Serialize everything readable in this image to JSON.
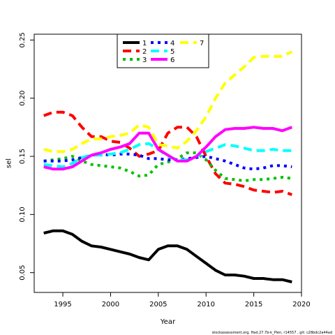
{
  "chart_data": {
    "type": "line",
    "xlabel": "Year",
    "ylabel": "sel",
    "xlim": [
      1992,
      2020
    ],
    "ylim": [
      0.033,
      0.255
    ],
    "x_ticks": [
      1995,
      2000,
      2005,
      2010,
      2015,
      2020
    ],
    "y_ticks": [
      0.05,
      0.1,
      0.15,
      0.2,
      0.25
    ],
    "x_tick_labels": [
      "1995",
      "2000",
      "2005",
      "2010",
      "2015",
      "2020"
    ],
    "y_tick_labels": [
      "0.05",
      "0.10",
      "0.15",
      "0.20",
      "0.25"
    ],
    "grid": false,
    "legend_position": "top-center",
    "footer": "stockassessment.org, Had.27.7b-k_Plen, r14557 , git: c28bdc2a44ad",
    "x": [
      1993,
      1994,
      1995,
      1996,
      1997,
      1998,
      1999,
      2000,
      2001,
      2002,
      2003,
      2004,
      2005,
      2006,
      2007,
      2008,
      2009,
      2010,
      2011,
      2012,
      2013,
      2014,
      2015,
      2016,
      2017,
      2018,
      2019
    ],
    "series": [
      {
        "name": "1",
        "color": "#000000",
        "dash": "solid",
        "values": [
          0.084,
          0.086,
          0.086,
          0.083,
          0.077,
          0.073,
          0.072,
          0.07,
          0.068,
          0.066,
          0.063,
          0.061,
          0.07,
          0.073,
          0.073,
          0.07,
          0.064,
          0.058,
          0.052,
          0.048,
          0.048,
          0.047,
          0.045,
          0.045,
          0.044,
          0.044,
          0.042
        ]
      },
      {
        "name": "2",
        "color": "#ff0000",
        "dash": "longdash",
        "values": [
          0.185,
          0.188,
          0.188,
          0.185,
          0.175,
          0.167,
          0.167,
          0.163,
          0.162,
          0.157,
          0.15,
          0.152,
          0.155,
          0.17,
          0.175,
          0.175,
          0.167,
          0.15,
          0.135,
          0.127,
          0.126,
          0.124,
          0.121,
          0.12,
          0.119,
          0.12,
          0.117
        ]
      },
      {
        "name": "3",
        "color": "#00c000",
        "dash": "dotted",
        "values": [
          0.146,
          0.147,
          0.148,
          0.15,
          0.146,
          0.143,
          0.142,
          0.141,
          0.14,
          0.137,
          0.133,
          0.134,
          0.143,
          0.145,
          0.148,
          0.153,
          0.153,
          0.147,
          0.138,
          0.131,
          0.13,
          0.129,
          0.13,
          0.13,
          0.131,
          0.132,
          0.131
        ]
      },
      {
        "name": "4",
        "color": "#0000ff",
        "dash": "dotted",
        "values": [
          0.146,
          0.146,
          0.146,
          0.147,
          0.149,
          0.151,
          0.152,
          0.151,
          0.152,
          0.152,
          0.151,
          0.148,
          0.148,
          0.147,
          0.147,
          0.148,
          0.149,
          0.15,
          0.148,
          0.146,
          0.143,
          0.14,
          0.139,
          0.14,
          0.142,
          0.142,
          0.141
        ]
      },
      {
        "name": "5",
        "color": "#00ffff",
        "dash": "longdash",
        "values": [
          0.143,
          0.142,
          0.141,
          0.144,
          0.149,
          0.151,
          0.151,
          0.152,
          0.153,
          0.156,
          0.16,
          0.161,
          0.156,
          0.15,
          0.147,
          0.147,
          0.15,
          0.154,
          0.157,
          0.16,
          0.159,
          0.157,
          0.155,
          0.155,
          0.156,
          0.155,
          0.155
        ]
      },
      {
        "name": "6",
        "color": "#ff00ff",
        "dash": "solid",
        "values": [
          0.141,
          0.139,
          0.139,
          0.141,
          0.146,
          0.151,
          0.153,
          0.156,
          0.158,
          0.161,
          0.17,
          0.17,
          0.156,
          0.151,
          0.146,
          0.146,
          0.15,
          0.158,
          0.167,
          0.173,
          0.174,
          0.174,
          0.175,
          0.174,
          0.174,
          0.172,
          0.175
        ]
      },
      {
        "name": "7",
        "color": "#ffff00",
        "dash": "longdash",
        "values": [
          0.156,
          0.154,
          0.154,
          0.156,
          0.161,
          0.165,
          0.165,
          0.167,
          0.168,
          0.17,
          0.177,
          0.175,
          0.16,
          0.159,
          0.157,
          0.163,
          0.172,
          0.184,
          0.2,
          0.213,
          0.22,
          0.227,
          0.235,
          0.236,
          0.236,
          0.236,
          0.24
        ]
      }
    ],
    "legend_order": [
      "1",
      "2",
      "3",
      "4",
      "5",
      "6",
      "7"
    ]
  }
}
